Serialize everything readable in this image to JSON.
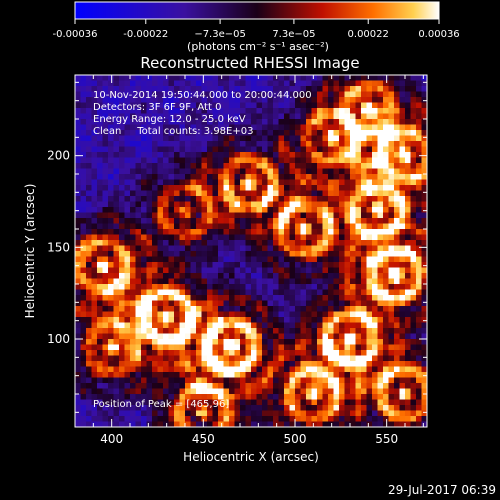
{
  "chart_data": {
    "type": "heatmap",
    "title": "Reconstructed RHESSI Image",
    "xlabel": "Heliocentric X (arcsec)",
    "ylabel": "Heliocentric Y (arcsec)",
    "xlim": [
      380,
      572
    ],
    "ylim": [
      52,
      244
    ],
    "x_ticks": [
      400,
      450,
      500,
      550
    ],
    "y_ticks": [
      100,
      150,
      200
    ],
    "colorbar": {
      "range": [
        -0.00036,
        0.00036
      ],
      "tick_values": [
        -0.00036,
        -0.00022,
        -7.3e-05,
        7.3e-05,
        0.00022,
        0.00036
      ],
      "tick_labels": [
        "-0.00036",
        "-0.00022",
        "−7.3e−05",
        "7.3e−05",
        "0.00022",
        "0.00036"
      ],
      "units": "(photons cm⁻² s⁻¹ asec⁻²)",
      "stops": [
        {
          "pos": 0.0,
          "color": "#0000ff"
        },
        {
          "pos": 0.3,
          "color": "#3a10a0"
        },
        {
          "pos": 0.5,
          "color": "#1a0018"
        },
        {
          "pos": 0.68,
          "color": "#c01000"
        },
        {
          "pos": 0.82,
          "color": "#ff7000"
        },
        {
          "pos": 0.93,
          "color": "#ffd050"
        },
        {
          "pos": 1.0,
          "color": "#ffffff"
        }
      ]
    },
    "annotations": [
      "10-Nov-2014 19:50:44.000 to 20:00:44.000",
      "Detectors: 3F 6F 9F, Att 0",
      "Energy Range: 12.0 - 25.0 keV",
      "Clean     Total counts: 3.98E+03"
    ],
    "peak_label": "Position of Peak = [465,96]",
    "peak": [
      465,
      96
    ],
    "hotspots": [
      {
        "x": 465,
        "y": 96,
        "level": 1.0
      },
      {
        "x": 555,
        "y": 135,
        "level": 0.95
      },
      {
        "x": 430,
        "y": 112,
        "level": 0.9
      },
      {
        "x": 395,
        "y": 140,
        "level": 0.85
      },
      {
        "x": 530,
        "y": 100,
        "level": 0.9
      },
      {
        "x": 560,
        "y": 200,
        "level": 0.8
      },
      {
        "x": 540,
        "y": 225,
        "level": 0.7
      },
      {
        "x": 505,
        "y": 160,
        "level": 0.8
      },
      {
        "x": 475,
        "y": 185,
        "level": 0.75
      },
      {
        "x": 440,
        "y": 170,
        "level": 0.6
      },
      {
        "x": 510,
        "y": 70,
        "level": 0.85
      },
      {
        "x": 450,
        "y": 60,
        "level": 0.75
      },
      {
        "x": 400,
        "y": 95,
        "level": 0.7
      },
      {
        "x": 560,
        "y": 70,
        "level": 0.8
      },
      {
        "x": 520,
        "y": 210,
        "level": 0.65
      },
      {
        "x": 545,
        "y": 170,
        "level": 0.75
      }
    ]
  },
  "footer": {
    "timestamp": "29-Jul-2017 06:39"
  }
}
